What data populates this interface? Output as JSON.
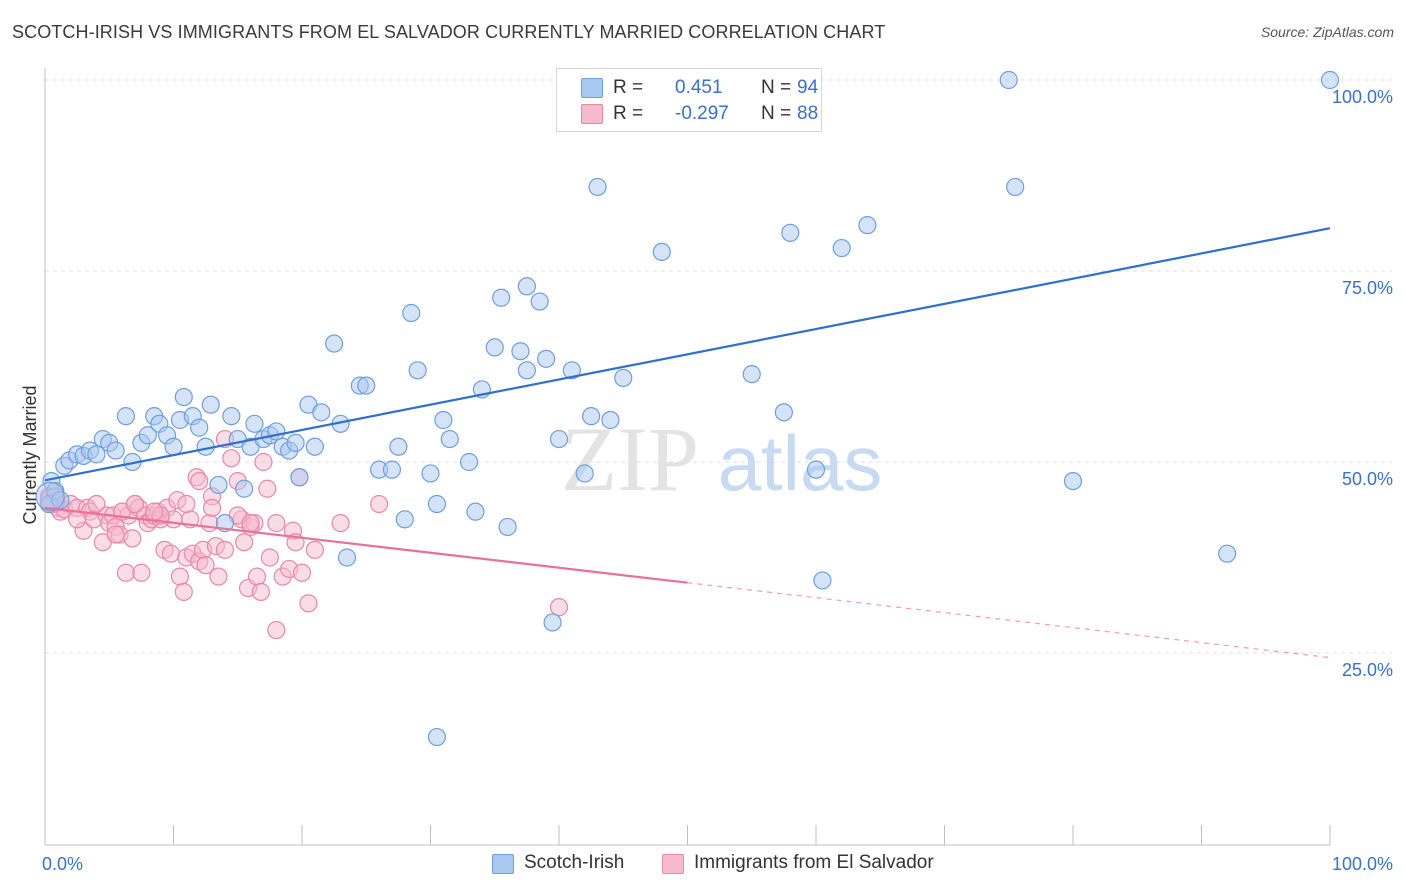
{
  "title": "SCOTCH-IRISH VS IMMIGRANTS FROM EL SALVADOR CURRENTLY MARRIED CORRELATION CHART",
  "source": "Source: ZipAtlas.com",
  "watermark": {
    "zip": "ZIP",
    "atlas": "atlas"
  },
  "legend_top": [
    {
      "series": "Scotch-Irish",
      "r_label": "R =",
      "r_value": "0.451",
      "n_label": "N =",
      "n_value": "94"
    },
    {
      "series": "Immigrants from El Salvador",
      "r_label": "R =",
      "r_value": "-0.297",
      "n_label": "N =",
      "n_value": "88"
    }
  ],
  "colors": {
    "blue_fill": "#a9c8ef",
    "blue_stroke": "#6e9fdc",
    "blue_line": "#2f6fce",
    "pink_fill": "#f6b9cd",
    "pink_stroke": "#e888a8",
    "pink_line": "#e8709a",
    "axis_text": "#3b6fc8",
    "grid": "#dcdcdc"
  },
  "chart_data": {
    "type": "scatter",
    "title": "SCOTCH-IRISH VS IMMIGRANTS FROM EL SALVADOR CURRENTLY MARRIED CORRELATION CHART",
    "xlabel": "",
    "ylabel": "Currently Married",
    "xlim": [
      0,
      100
    ],
    "ylim": [
      0,
      102
    ],
    "x_tick_labels": [
      "0.0%",
      "100.0%"
    ],
    "y_ticks": [
      25,
      50,
      75,
      100
    ],
    "y_tick_labels": [
      "25.0%",
      "50.0%",
      "75.0%",
      "100.0%"
    ],
    "grid": "horizontal dashed",
    "legend": "top-center",
    "series": [
      {
        "name": "Scotch-Irish",
        "color": "#a9c8ef",
        "trend": {
          "x0": 0,
          "y0": 47.6,
          "x1": 100,
          "y1": 80.6,
          "solid_until": 100
        },
        "points": [
          [
            0.3,
            44.5
          ],
          [
            0.5,
            47.5
          ],
          [
            0.8,
            46.2
          ],
          [
            1.2,
            45.0
          ],
          [
            1.5,
            49.5
          ],
          [
            1.9,
            50.2
          ],
          [
            2.5,
            51.0
          ],
          [
            3.0,
            50.8
          ],
          [
            3.5,
            51.5
          ],
          [
            4.0,
            51.0
          ],
          [
            4.5,
            53.0
          ],
          [
            5.0,
            52.5
          ],
          [
            5.5,
            51.5
          ],
          [
            6.3,
            56.0
          ],
          [
            6.8,
            50.0
          ],
          [
            7.5,
            52.5
          ],
          [
            8.0,
            53.5
          ],
          [
            8.5,
            56.0
          ],
          [
            8.9,
            55.0
          ],
          [
            9.5,
            53.5
          ],
          [
            10.0,
            52.0
          ],
          [
            10.5,
            55.5
          ],
          [
            10.8,
            58.5
          ],
          [
            11.5,
            56.0
          ],
          [
            12.0,
            54.5
          ],
          [
            12.5,
            52.0
          ],
          [
            12.9,
            57.5
          ],
          [
            13.5,
            47.0
          ],
          [
            14.0,
            42.0
          ],
          [
            14.5,
            56.0
          ],
          [
            15.0,
            53.0
          ],
          [
            15.5,
            46.5
          ],
          [
            16.0,
            52.0
          ],
          [
            16.3,
            55.0
          ],
          [
            17.0,
            53.0
          ],
          [
            17.5,
            53.5
          ],
          [
            18.0,
            54.0
          ],
          [
            18.5,
            52.0
          ],
          [
            19.0,
            51.5
          ],
          [
            19.5,
            52.5
          ],
          [
            19.8,
            48.0
          ],
          [
            20.5,
            57.5
          ],
          [
            21.0,
            52.0
          ],
          [
            21.5,
            56.5
          ],
          [
            22.5,
            65.5
          ],
          [
            23.0,
            55.0
          ],
          [
            23.5,
            37.5
          ],
          [
            24.5,
            60.0
          ],
          [
            25.0,
            60.0
          ],
          [
            26.0,
            49.0
          ],
          [
            27.0,
            49.0
          ],
          [
            27.5,
            52.0
          ],
          [
            28.0,
            42.5
          ],
          [
            28.5,
            69.5
          ],
          [
            29.0,
            62.0
          ],
          [
            30.0,
            48.5
          ],
          [
            30.5,
            44.5
          ],
          [
            31.0,
            55.5
          ],
          [
            31.5,
            53.0
          ],
          [
            33.0,
            50.0
          ],
          [
            33.5,
            43.5
          ],
          [
            34.0,
            59.5
          ],
          [
            35.0,
            65.0
          ],
          [
            35.5,
            71.5
          ],
          [
            36.0,
            41.5
          ],
          [
            37.0,
            64.5
          ],
          [
            37.5,
            73.0
          ],
          [
            37.5,
            62.0
          ],
          [
            38.5,
            71.0
          ],
          [
            39.0,
            63.5
          ],
          [
            39.5,
            29.0
          ],
          [
            40.0,
            53.0
          ],
          [
            41.0,
            62.0
          ],
          [
            42.0,
            48.5
          ],
          [
            42.5,
            56.0
          ],
          [
            43.0,
            100.0
          ],
          [
            43.0,
            86.0
          ],
          [
            44.0,
            55.5
          ],
          [
            45.0,
            61.0
          ],
          [
            48.0,
            77.5
          ],
          [
            50.0,
            100.0
          ],
          [
            55.0,
            61.5
          ],
          [
            57.5,
            56.5
          ],
          [
            58.0,
            80.0
          ],
          [
            60.0,
            49.0
          ],
          [
            60.5,
            34.5
          ],
          [
            62.0,
            78.0
          ],
          [
            64.0,
            81.0
          ],
          [
            75.0,
            100.0
          ],
          [
            75.5,
            86.0
          ],
          [
            80.0,
            47.5
          ],
          [
            92.0,
            38.0
          ],
          [
            100.0,
            100.0
          ],
          [
            30.5,
            14.0
          ]
        ]
      },
      {
        "name": "Immigrants from El Salvador",
        "color": "#f6b9cd",
        "trend": {
          "x0": 0,
          "y0": 44.0,
          "x1": 100,
          "y1": 24.4,
          "solid_until": 50
        },
        "points": [
          [
            0.3,
            45.5
          ],
          [
            0.5,
            44.8
          ],
          [
            0.8,
            45.5
          ],
          [
            1.0,
            44.0
          ],
          [
            1.2,
            43.5
          ],
          [
            1.5,
            43.8
          ],
          [
            2.0,
            44.5
          ],
          [
            2.5,
            44.0
          ],
          [
            3.0,
            41.0
          ],
          [
            3.3,
            44.0
          ],
          [
            3.5,
            43.5
          ],
          [
            3.8,
            42.5
          ],
          [
            4.0,
            44.5
          ],
          [
            4.5,
            39.5
          ],
          [
            4.8,
            43.0
          ],
          [
            5.0,
            42.0
          ],
          [
            5.3,
            43.0
          ],
          [
            5.5,
            41.5
          ],
          [
            5.8,
            40.5
          ],
          [
            6.0,
            43.5
          ],
          [
            6.3,
            35.5
          ],
          [
            6.5,
            43.0
          ],
          [
            6.8,
            40.0
          ],
          [
            7.0,
            44.5
          ],
          [
            7.3,
            44.0
          ],
          [
            7.5,
            35.5
          ],
          [
            7.8,
            43.0
          ],
          [
            8.0,
            42.0
          ],
          [
            8.3,
            42.5
          ],
          [
            8.5,
            43.0
          ],
          [
            8.8,
            43.5
          ],
          [
            9.0,
            42.5
          ],
          [
            9.3,
            38.5
          ],
          [
            9.5,
            44.0
          ],
          [
            9.8,
            38.0
          ],
          [
            10.0,
            42.5
          ],
          [
            10.3,
            45.0
          ],
          [
            10.5,
            35.0
          ],
          [
            10.8,
            33.0
          ],
          [
            11.0,
            37.5
          ],
          [
            11.3,
            42.5
          ],
          [
            11.5,
            38.0
          ],
          [
            11.8,
            48.0
          ],
          [
            12.0,
            37.0
          ],
          [
            12.3,
            38.5
          ],
          [
            12.5,
            36.5
          ],
          [
            12.8,
            42.0
          ],
          [
            13.0,
            45.5
          ],
          [
            13.3,
            39.0
          ],
          [
            13.5,
            35.0
          ],
          [
            14.0,
            53.0
          ],
          [
            14.5,
            50.5
          ],
          [
            15.0,
            47.5
          ],
          [
            15.3,
            42.5
          ],
          [
            15.5,
            39.5
          ],
          [
            15.8,
            33.5
          ],
          [
            16.0,
            41.5
          ],
          [
            16.3,
            42.0
          ],
          [
            16.5,
            35.0
          ],
          [
            16.8,
            33.0
          ],
          [
            17.0,
            50.0
          ],
          [
            17.3,
            46.5
          ],
          [
            17.5,
            37.5
          ],
          [
            18.0,
            28.0
          ],
          [
            18.5,
            35.0
          ],
          [
            19.0,
            36.0
          ],
          [
            19.3,
            41.0
          ],
          [
            19.5,
            39.5
          ],
          [
            19.8,
            48.0
          ],
          [
            20.0,
            35.5
          ],
          [
            20.5,
            31.5
          ],
          [
            21.0,
            38.5
          ],
          [
            23.0,
            42.0
          ],
          [
            26.0,
            44.5
          ],
          [
            40.0,
            31.0
          ],
          [
            14.0,
            38.5
          ],
          [
            5.5,
            40.5
          ],
          [
            6.0,
            43.5
          ],
          [
            9.0,
            43.0
          ],
          [
            15.0,
            43.0
          ],
          [
            16.0,
            42.0
          ],
          [
            12.0,
            47.5
          ],
          [
            8.5,
            43.5
          ],
          [
            2.5,
            42.5
          ],
          [
            7.0,
            44.5
          ],
          [
            11.0,
            44.5
          ],
          [
            13.0,
            44.0
          ],
          [
            18.0,
            42.0
          ]
        ]
      }
    ]
  }
}
